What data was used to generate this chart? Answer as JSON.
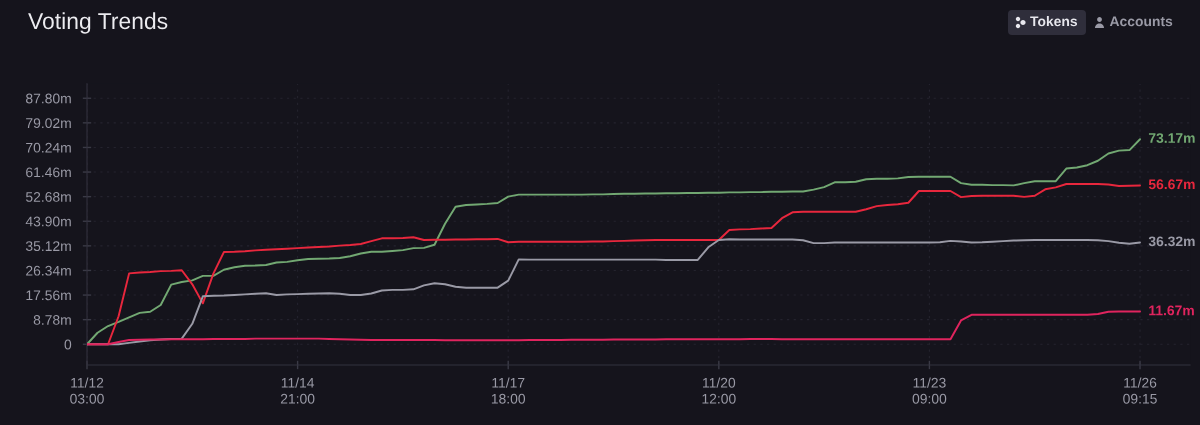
{
  "chart_data": {
    "type": "line",
    "title": "Voting Trends",
    "annotations": [
      "Tokens",
      "Accounts"
    ],
    "categories": [
      "11/12\n03:00",
      null,
      null,
      null,
      null,
      null,
      null,
      null,
      null,
      null,
      null,
      null,
      null,
      null,
      null,
      null,
      null,
      null,
      null,
      null,
      "11/14\n21:00",
      null,
      null,
      null,
      null,
      null,
      null,
      null,
      null,
      null,
      null,
      null,
      null,
      null,
      null,
      null,
      null,
      null,
      null,
      null,
      "11/17\n18:00",
      null,
      null,
      null,
      null,
      null,
      null,
      null,
      null,
      null,
      null,
      null,
      null,
      null,
      null,
      null,
      null,
      null,
      null,
      null,
      "11/20\n12:00",
      null,
      null,
      null,
      null,
      null,
      null,
      null,
      null,
      null,
      null,
      null,
      null,
      null,
      null,
      null,
      null,
      null,
      null,
      null,
      "11/23\n09:00",
      null,
      null,
      null,
      null,
      null,
      null,
      null,
      null,
      null,
      null,
      null,
      null,
      null,
      null,
      null,
      null,
      null,
      null,
      null,
      "11/26\n09:15"
    ],
    "series": [
      {
        "color": "#72a872",
        "values": [
          0,
          4.1,
          6.5,
          8.0,
          9.6,
          11.2,
          11.6,
          14.0,
          21.3,
          22.2,
          22.8,
          24.4,
          24.4,
          26.6,
          27.5,
          28.0,
          28.1,
          28.3,
          29.2,
          29.4,
          30.0,
          30.4,
          30.5,
          30.6,
          30.8,
          31.4,
          32.4,
          33.0,
          33.0,
          33.3,
          33.6,
          34.3,
          34.4,
          35.5,
          43.0,
          49.1,
          49.7,
          49.9,
          50.1,
          50.4,
          52.7,
          53.4,
          53.4,
          53.4,
          53.4,
          53.4,
          53.4,
          53.4,
          53.5,
          53.5,
          53.6,
          53.7,
          53.7,
          53.8,
          53.8,
          53.9,
          53.9,
          54.0,
          54.0,
          54.1,
          54.1,
          54.2,
          54.2,
          54.3,
          54.3,
          54.4,
          54.4,
          54.5,
          54.5,
          55.2,
          56.1,
          57.8,
          57.8,
          58.0,
          58.9,
          59.1,
          59.1,
          59.2,
          59.7,
          59.8,
          59.8,
          59.8,
          59.8,
          57.5,
          56.9,
          56.9,
          56.8,
          56.8,
          56.7,
          57.5,
          58.2,
          58.2,
          58.2,
          62.7,
          63.1,
          63.9,
          65.5,
          68.1,
          69.1,
          69.3,
          73.17
        ],
        "value_labels": [
          null,
          null,
          null,
          null,
          null,
          null,
          null,
          null,
          null,
          null,
          null,
          null,
          null,
          null,
          null,
          null,
          null,
          null,
          null,
          null,
          null,
          null,
          null,
          null,
          null,
          null,
          null,
          null,
          null,
          null,
          null,
          null,
          null,
          null,
          null,
          null,
          null,
          null,
          null,
          null,
          null,
          null,
          null,
          null,
          null,
          null,
          null,
          null,
          null,
          null,
          null,
          null,
          null,
          null,
          null,
          null,
          null,
          null,
          null,
          null,
          null,
          null,
          null,
          null,
          null,
          null,
          null,
          null,
          null,
          null,
          null,
          null,
          null,
          null,
          null,
          null,
          null,
          null,
          null,
          null,
          null,
          null,
          null,
          null,
          null,
          null,
          null,
          null,
          null,
          null,
          null,
          null,
          null,
          null,
          null,
          null,
          null,
          null,
          null,
          null,
          "73.17m"
        ]
      },
      {
        "color": "#e8273d",
        "values": [
          0,
          0,
          0,
          10.0,
          25.3,
          25.6,
          25.8,
          26.1,
          26.2,
          26.4,
          21.4,
          14.6,
          25.2,
          32.9,
          33.0,
          33.2,
          33.5,
          33.7,
          33.9,
          34.1,
          34.3,
          34.5,
          34.7,
          34.9,
          35.2,
          35.4,
          35.8,
          36.8,
          37.8,
          37.8,
          37.9,
          38.2,
          37.2,
          37.3,
          37.3,
          37.4,
          37.4,
          37.5,
          37.5,
          37.6,
          36.4,
          36.6,
          36.6,
          36.6,
          36.6,
          36.6,
          36.6,
          36.6,
          36.7,
          36.7,
          36.8,
          36.9,
          37.0,
          37.1,
          37.2,
          37.2,
          37.2,
          37.2,
          37.2,
          37.2,
          37.2,
          40.8,
          41.0,
          41.1,
          41.3,
          41.5,
          45.0,
          47.1,
          47.3,
          47.3,
          47.3,
          47.3,
          47.3,
          47.3,
          48.2,
          49.3,
          49.7,
          50.0,
          50.5,
          54.7,
          54.7,
          54.7,
          54.7,
          52.5,
          52.9,
          53.0,
          53.0,
          53.0,
          53.0,
          52.6,
          53.0,
          55.3,
          56.0,
          57.2,
          57.2,
          57.2,
          57.2,
          57.0,
          56.5,
          56.6,
          56.67
        ],
        "value_labels": [
          null,
          null,
          null,
          null,
          null,
          null,
          null,
          null,
          null,
          null,
          null,
          null,
          null,
          null,
          null,
          null,
          null,
          null,
          null,
          null,
          null,
          null,
          null,
          null,
          null,
          null,
          null,
          null,
          null,
          null,
          null,
          null,
          null,
          null,
          null,
          null,
          null,
          null,
          null,
          null,
          null,
          null,
          null,
          null,
          null,
          null,
          null,
          null,
          null,
          null,
          null,
          null,
          null,
          null,
          null,
          null,
          null,
          null,
          null,
          null,
          null,
          null,
          null,
          null,
          null,
          null,
          null,
          null,
          null,
          null,
          null,
          null,
          null,
          null,
          null,
          null,
          null,
          null,
          null,
          null,
          null,
          null,
          null,
          null,
          null,
          null,
          null,
          null,
          null,
          null,
          null,
          null,
          null,
          null,
          null,
          null,
          null,
          null,
          null,
          null,
          "56.67m"
        ]
      },
      {
        "color": "#9a9aa6",
        "values": [
          0,
          0,
          0,
          0,
          0.5,
          1.0,
          1.4,
          1.7,
          1.9,
          2.0,
          7.3,
          17.1,
          17.3,
          17.4,
          17.6,
          17.8,
          18.0,
          18.2,
          17.6,
          17.8,
          17.9,
          18.0,
          18.1,
          18.2,
          18.0,
          17.6,
          17.6,
          18.1,
          19.2,
          19.4,
          19.4,
          19.6,
          21.0,
          21.8,
          21.4,
          20.5,
          20.2,
          20.2,
          20.2,
          20.2,
          22.7,
          30.3,
          30.2,
          30.2,
          30.2,
          30.2,
          30.2,
          30.2,
          30.2,
          30.2,
          30.2,
          30.2,
          30.2,
          30.2,
          30.2,
          30.1,
          30.1,
          30.1,
          30.1,
          34.6,
          37.2,
          37.5,
          37.4,
          37.4,
          37.4,
          37.4,
          37.4,
          37.4,
          37.1,
          36.1,
          36.1,
          36.3,
          36.3,
          36.3,
          36.3,
          36.3,
          36.3,
          36.3,
          36.3,
          36.3,
          36.3,
          36.4,
          36.9,
          36.7,
          36.3,
          36.4,
          36.6,
          36.8,
          37.0,
          37.1,
          37.2,
          37.2,
          37.2,
          37.2,
          37.2,
          37.2,
          37.1,
          36.8,
          36.2,
          35.9,
          36.32
        ],
        "value_labels": [
          null,
          null,
          null,
          null,
          null,
          null,
          null,
          null,
          null,
          null,
          null,
          null,
          null,
          null,
          null,
          null,
          null,
          null,
          null,
          null,
          null,
          null,
          null,
          null,
          null,
          null,
          null,
          null,
          null,
          null,
          null,
          null,
          null,
          null,
          null,
          null,
          null,
          null,
          null,
          null,
          null,
          null,
          null,
          null,
          null,
          null,
          null,
          null,
          null,
          null,
          null,
          null,
          null,
          null,
          null,
          null,
          null,
          null,
          null,
          null,
          null,
          null,
          null,
          null,
          null,
          null,
          null,
          null,
          null,
          null,
          null,
          null,
          null,
          null,
          null,
          null,
          null,
          null,
          null,
          null,
          null,
          null,
          null,
          null,
          null,
          null,
          null,
          null,
          null,
          null,
          null,
          null,
          null,
          null,
          null,
          null,
          null,
          null,
          null,
          null,
          "36.32m"
        ]
      },
      {
        "color": "#e0245e",
        "values": [
          0,
          0,
          0,
          0.8,
          1.5,
          1.6,
          1.7,
          1.7,
          1.8,
          1.8,
          1.8,
          1.8,
          1.9,
          1.9,
          1.9,
          1.9,
          2.0,
          2.0,
          2.0,
          2.0,
          2.0,
          2.0,
          2.0,
          1.9,
          1.8,
          1.7,
          1.6,
          1.5,
          1.5,
          1.5,
          1.5,
          1.5,
          1.5,
          1.5,
          1.4,
          1.4,
          1.4,
          1.4,
          1.4,
          1.4,
          1.4,
          1.4,
          1.5,
          1.5,
          1.5,
          1.5,
          1.6,
          1.6,
          1.6,
          1.6,
          1.7,
          1.7,
          1.7,
          1.7,
          1.7,
          1.8,
          1.8,
          1.8,
          1.8,
          1.8,
          1.8,
          1.8,
          1.8,
          1.9,
          1.9,
          1.9,
          1.8,
          1.8,
          1.8,
          1.8,
          1.8,
          1.8,
          1.8,
          1.8,
          1.8,
          1.8,
          1.8,
          1.8,
          1.8,
          1.8,
          1.8,
          1.8,
          1.8,
          8.5,
          10.5,
          10.5,
          10.5,
          10.5,
          10.5,
          10.5,
          10.5,
          10.5,
          10.5,
          10.5,
          10.5,
          10.5,
          10.8,
          11.6,
          11.7,
          11.7,
          11.67
        ],
        "value_labels": [
          null,
          null,
          null,
          null,
          null,
          null,
          null,
          null,
          null,
          null,
          null,
          null,
          null,
          null,
          null,
          null,
          null,
          null,
          null,
          null,
          null,
          null,
          null,
          null,
          null,
          null,
          null,
          null,
          null,
          null,
          null,
          null,
          null,
          null,
          null,
          null,
          null,
          null,
          null,
          null,
          null,
          null,
          null,
          null,
          null,
          null,
          null,
          null,
          null,
          null,
          null,
          null,
          null,
          null,
          null,
          null,
          null,
          null,
          null,
          null,
          null,
          null,
          null,
          null,
          null,
          null,
          null,
          null,
          null,
          null,
          null,
          null,
          null,
          null,
          null,
          null,
          null,
          null,
          null,
          null,
          null,
          null,
          null,
          null,
          null,
          null,
          null,
          null,
          null,
          null,
          null,
          null,
          null,
          null,
          null,
          null,
          null,
          null,
          null,
          null,
          "11.67m"
        ]
      }
    ],
    "ylim": [
      -7.4,
      93
    ],
    "yticks": [
      0,
      {
        "value": 8.78,
        "label": "8.78m"
      },
      {
        "value": 17.56,
        "label": "17.56m"
      },
      {
        "value": 26.34,
        "label": "26.34m"
      },
      {
        "value": 35.12,
        "label": "35.12m"
      },
      {
        "value": 43.9,
        "label": "43.90m"
      },
      {
        "value": 52.68,
        "label": "52.68m"
      },
      {
        "value": 61.46,
        "label": "61.46m"
      },
      {
        "value": 70.24,
        "label": "70.24m"
      },
      {
        "value": 79.02,
        "label": "79.02m"
      },
      {
        "value": 87.8,
        "label": "87.80m"
      }
    ],
    "grid": true
  }
}
